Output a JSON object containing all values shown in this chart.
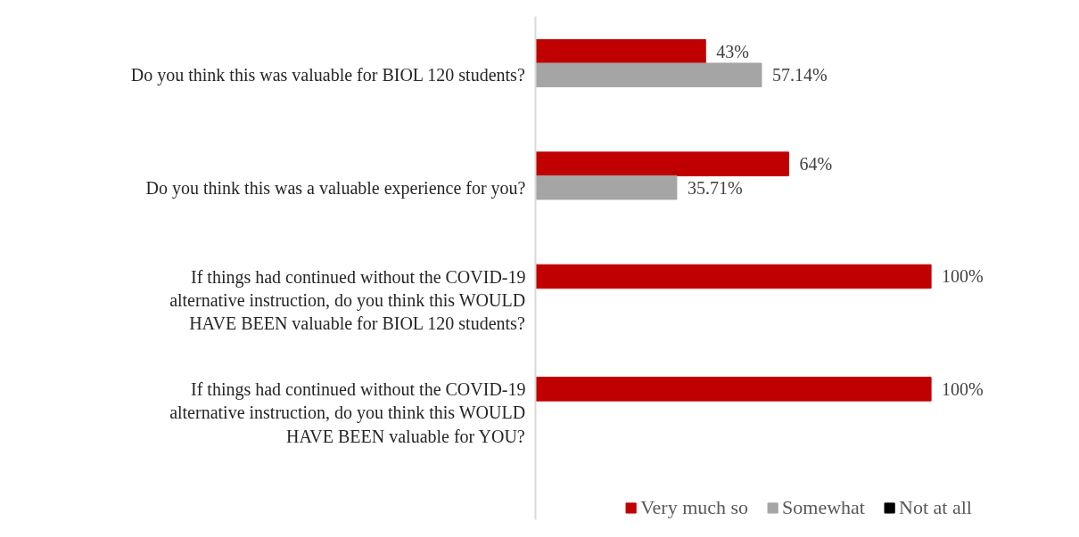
{
  "chart_data": {
    "type": "bar",
    "orientation": "horizontal",
    "legend": "bottom",
    "categories": [
      "Do you think this was valuable for BIOL 120 students?",
      "Do you think this was a valuable experience for you?",
      "If things had continued without the COVID-19 alternative instruction, do you think this WOULD HAVE BEEN valuable for BIOL 120 students?",
      "If things had continued without the COVID-19 alternative instruction, do you think this WOULD HAVE BEEN valuable for YOU?"
    ],
    "series": [
      {
        "name": "Very much so",
        "color": "#c00000",
        "values": [
          43,
          64,
          100,
          100
        ],
        "value_labels": [
          "43%",
          "64%",
          "100%",
          "100%"
        ]
      },
      {
        "name": "Somewhat",
        "color": "#a5a5a5",
        "values": [
          57.14,
          35.71,
          null,
          null
        ],
        "value_labels": [
          "57.14%",
          "35.71%",
          null,
          null
        ]
      },
      {
        "name": "Not at all",
        "color": "#000000",
        "values": [
          null,
          null,
          null,
          null
        ]
      }
    ]
  }
}
